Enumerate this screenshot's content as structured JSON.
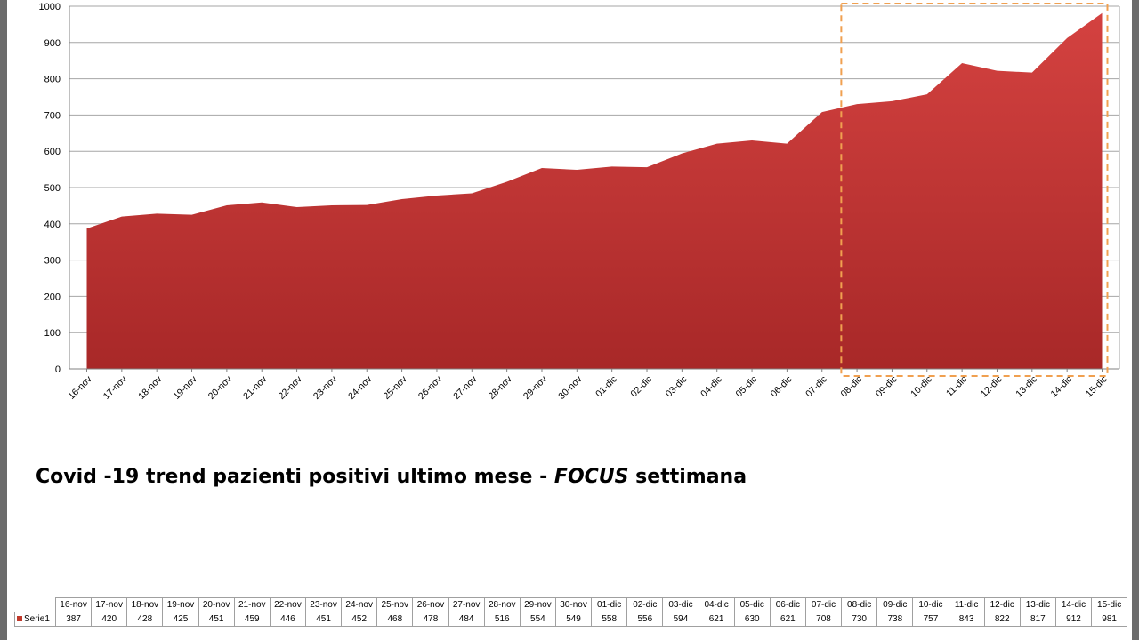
{
  "title": {
    "before": "Covid -19 trend pazienti positivi ultimo mese - ",
    "focus": "FOCUS",
    "after": " settimana"
  },
  "colors": {
    "area_top": "#d44240",
    "area_bottom": "#a82828",
    "highlight": "#f0a050",
    "grid": "#a6a6a6"
  },
  "chart_data": {
    "type": "area",
    "categories": [
      "16-nov",
      "17-nov",
      "18-nov",
      "19-nov",
      "20-nov",
      "21-nov",
      "22-nov",
      "23-nov",
      "24-nov",
      "25-nov",
      "26-nov",
      "27-nov",
      "28-nov",
      "29-nov",
      "30-nov",
      "01-dic",
      "02-dic",
      "03-dic",
      "04-dic",
      "05-dic",
      "06-dic",
      "07-dic",
      "08-dic",
      "09-dic",
      "10-dic",
      "11-dic",
      "12-dic",
      "13-dic",
      "14-dic",
      "15-dic"
    ],
    "series": [
      {
        "name": "Serie1",
        "values": [
          387,
          420,
          428,
          425,
          451,
          459,
          446,
          451,
          452,
          468,
          478,
          484,
          516,
          554,
          549,
          558,
          556,
          594,
          621,
          630,
          621,
          708,
          730,
          738,
          757,
          843,
          822,
          817,
          912,
          981
        ]
      }
    ],
    "ylim": [
      0,
      1000
    ],
    "yticks": [
      0,
      100,
      200,
      300,
      400,
      500,
      600,
      700,
      800,
      900,
      1000
    ],
    "grid": true,
    "highlight_range": [
      "08-dic",
      "15-dic"
    ]
  }
}
